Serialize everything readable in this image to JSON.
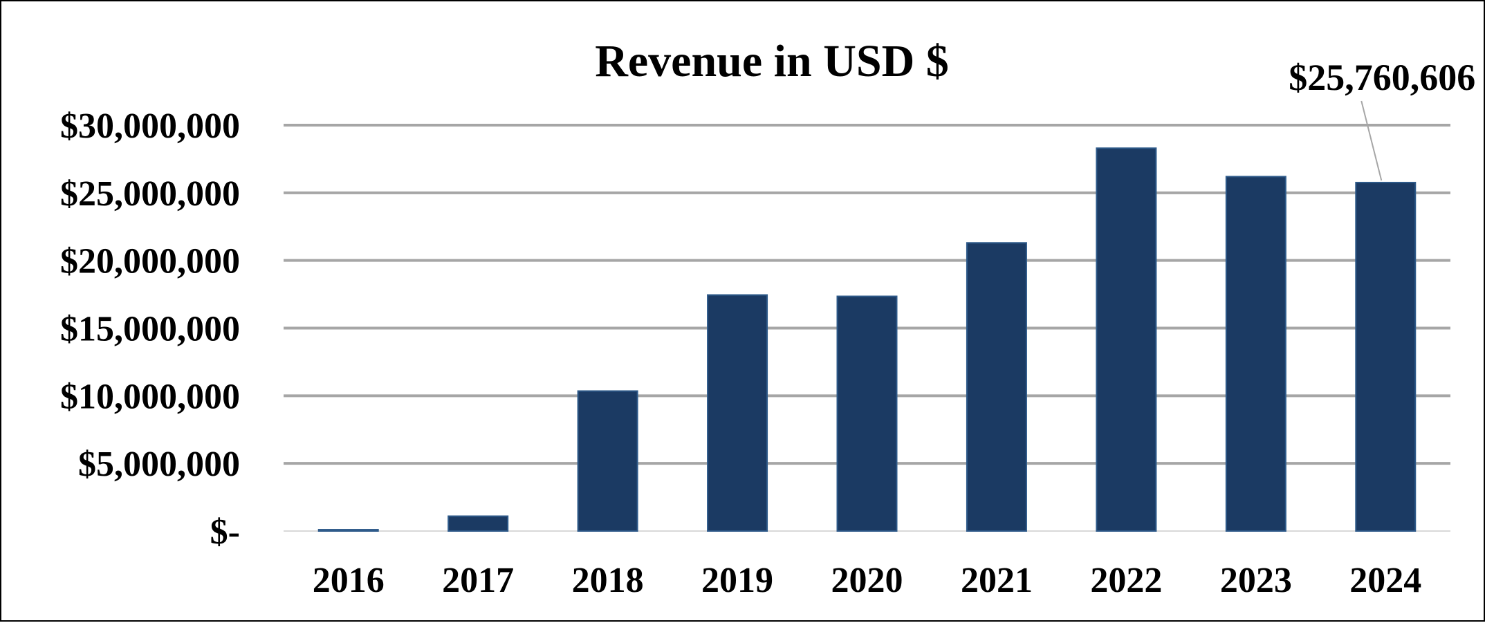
{
  "chart_data": {
    "type": "bar",
    "title": "Revenue in USD $",
    "xlabel": "",
    "ylabel": "",
    "categories": [
      "2016",
      "2017",
      "2018",
      "2019",
      "2020",
      "2021",
      "2022",
      "2023",
      "2024"
    ],
    "values": [
      100000,
      1100000,
      10350000,
      17450000,
      17350000,
      21300000,
      28300000,
      26200000,
      25760606
    ],
    "ylim": [
      0,
      30000000
    ],
    "y_ticks": [
      {
        "value": 0,
        "label": "$-"
      },
      {
        "value": 5000000,
        "label": "$5,000,000"
      },
      {
        "value": 10000000,
        "label": "$10,000,000"
      },
      {
        "value": 15000000,
        "label": "$15,000,000"
      },
      {
        "value": 20000000,
        "label": "$20,000,000"
      },
      {
        "value": 25000000,
        "label": "$25,000,000"
      },
      {
        "value": 30000000,
        "label": "$30,000,000"
      }
    ],
    "data_labels": [
      {
        "category": "2024",
        "text": "$25,760,606"
      }
    ],
    "grid": true,
    "legend": "none",
    "colors": {
      "bar": "#1b3a63",
      "bar_edge": "#2e5a8a",
      "grid": "#a6a6a6",
      "leader_line": "#a6a6a6",
      "text": "#000000"
    }
  }
}
